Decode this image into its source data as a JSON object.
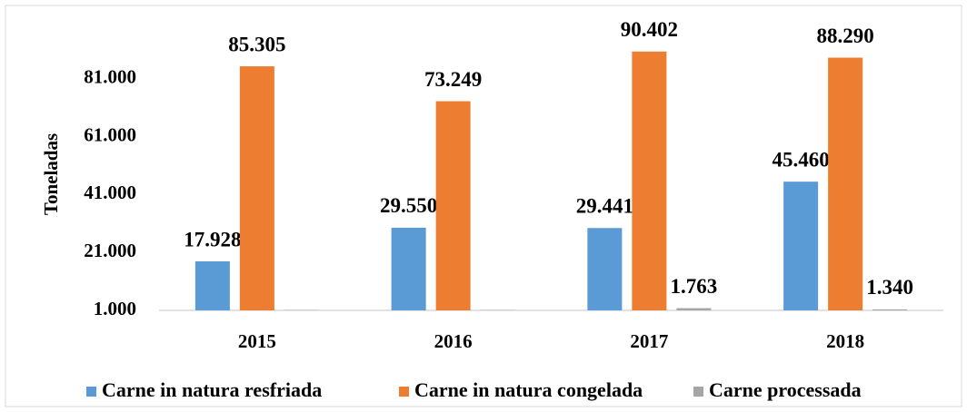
{
  "chart_data": {
    "type": "bar",
    "y_label": "Toneladas",
    "categories": [
      "2015",
      "2016",
      "2017",
      "2018"
    ],
    "series": [
      {
        "name": "Carne in natura resfriada",
        "color": "#5b9bd5",
        "values": [
          17928,
          29550,
          29441,
          45460
        ],
        "value_labels": [
          "17.928",
          "29.550",
          "29.441",
          "45.460"
        ]
      },
      {
        "name": "Carne in natura congelada",
        "color": "#ed7d31",
        "values": [
          85305,
          73249,
          90402,
          88290
        ],
        "value_labels": [
          "85.305",
          "73.249",
          "90.402",
          "88.290"
        ]
      },
      {
        "name": "Carne processada",
        "color": "#a5a5a5",
        "values": [
          1100,
          1100,
          1763,
          1340
        ],
        "value_labels": [
          null,
          null,
          "1.763",
          "1.340"
        ]
      }
    ],
    "ylim": [
      1000,
      101000
    ],
    "yticks": [
      {
        "value": 1000,
        "label": "1.000"
      },
      {
        "value": 21000,
        "label": "21.000"
      },
      {
        "value": 41000,
        "label": "41.000"
      },
      {
        "value": 61000,
        "label": "61.000"
      },
      {
        "value": 81000,
        "label": "81.000"
      }
    ],
    "grid": false,
    "legend": "bottom"
  }
}
